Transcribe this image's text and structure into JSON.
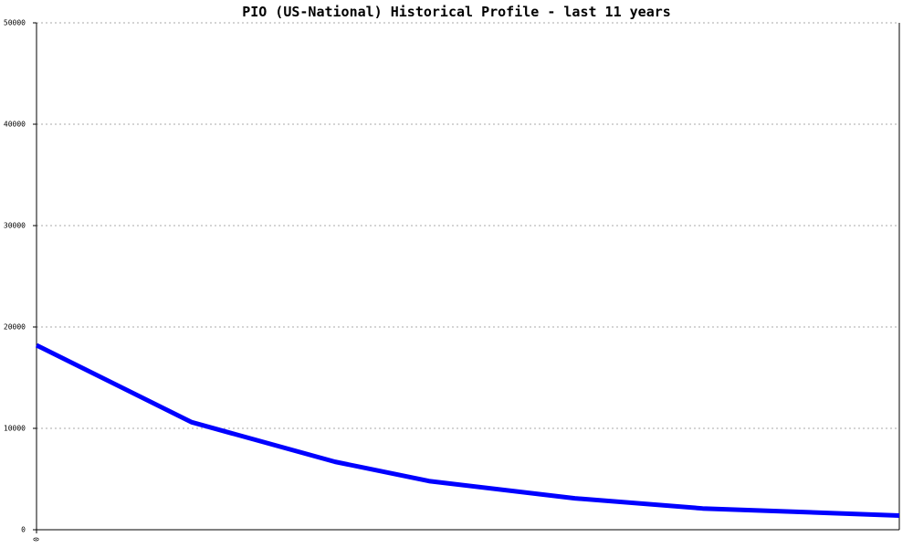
{
  "chart_data": {
    "type": "line",
    "title": "PIO (US-National) Historical Profile - last 11 years",
    "x": [
      0,
      18,
      34.6,
      45.5,
      62.4,
      77.2,
      100
    ],
    "values": [
      18200,
      10600,
      6700,
      4800,
      3100,
      2100,
      1400
    ],
    "color": "#0000ff",
    "xlim": [
      0,
      100
    ],
    "xticks": [
      0
    ],
    "ylim": [
      0,
      50000
    ],
    "yticks": [
      0,
      10000,
      20000,
      30000,
      40000,
      50000
    ],
    "grid": true
  }
}
